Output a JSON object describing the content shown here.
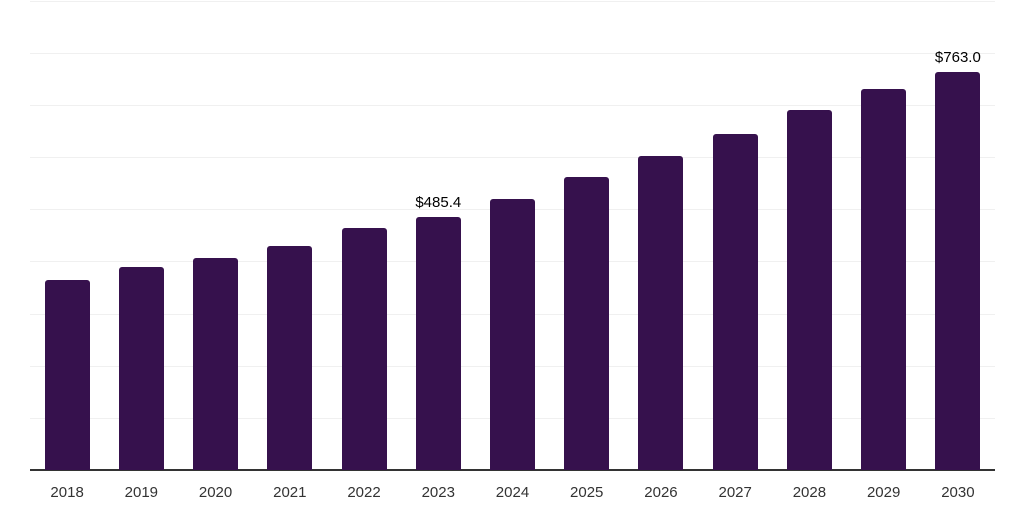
{
  "chart_data": {
    "type": "bar",
    "title": "",
    "xlabel": "",
    "ylabel": "",
    "categories": [
      "2018",
      "2019",
      "2020",
      "2021",
      "2022",
      "2023",
      "2024",
      "2025",
      "2026",
      "2027",
      "2028",
      "2029",
      "2030"
    ],
    "values": [
      364.7,
      388.4,
      406.3,
      428.6,
      464.3,
      485.4,
      520.5,
      562.7,
      602.1,
      644.2,
      690.2,
      729.8,
      763.0
    ],
    "data_labels": {
      "2023": "$485.4",
      "2030": "$763.0"
    },
    "ylim": [
      0,
      900
    ],
    "gridline_step": 100,
    "grid": true,
    "legend": false,
    "colors": {
      "bar": "#36114D",
      "axis_line": "#333333",
      "gridline": "#f0f0f0",
      "tick_label": "#333333",
      "data_label": "#000000",
      "background": "#ffffff"
    }
  }
}
